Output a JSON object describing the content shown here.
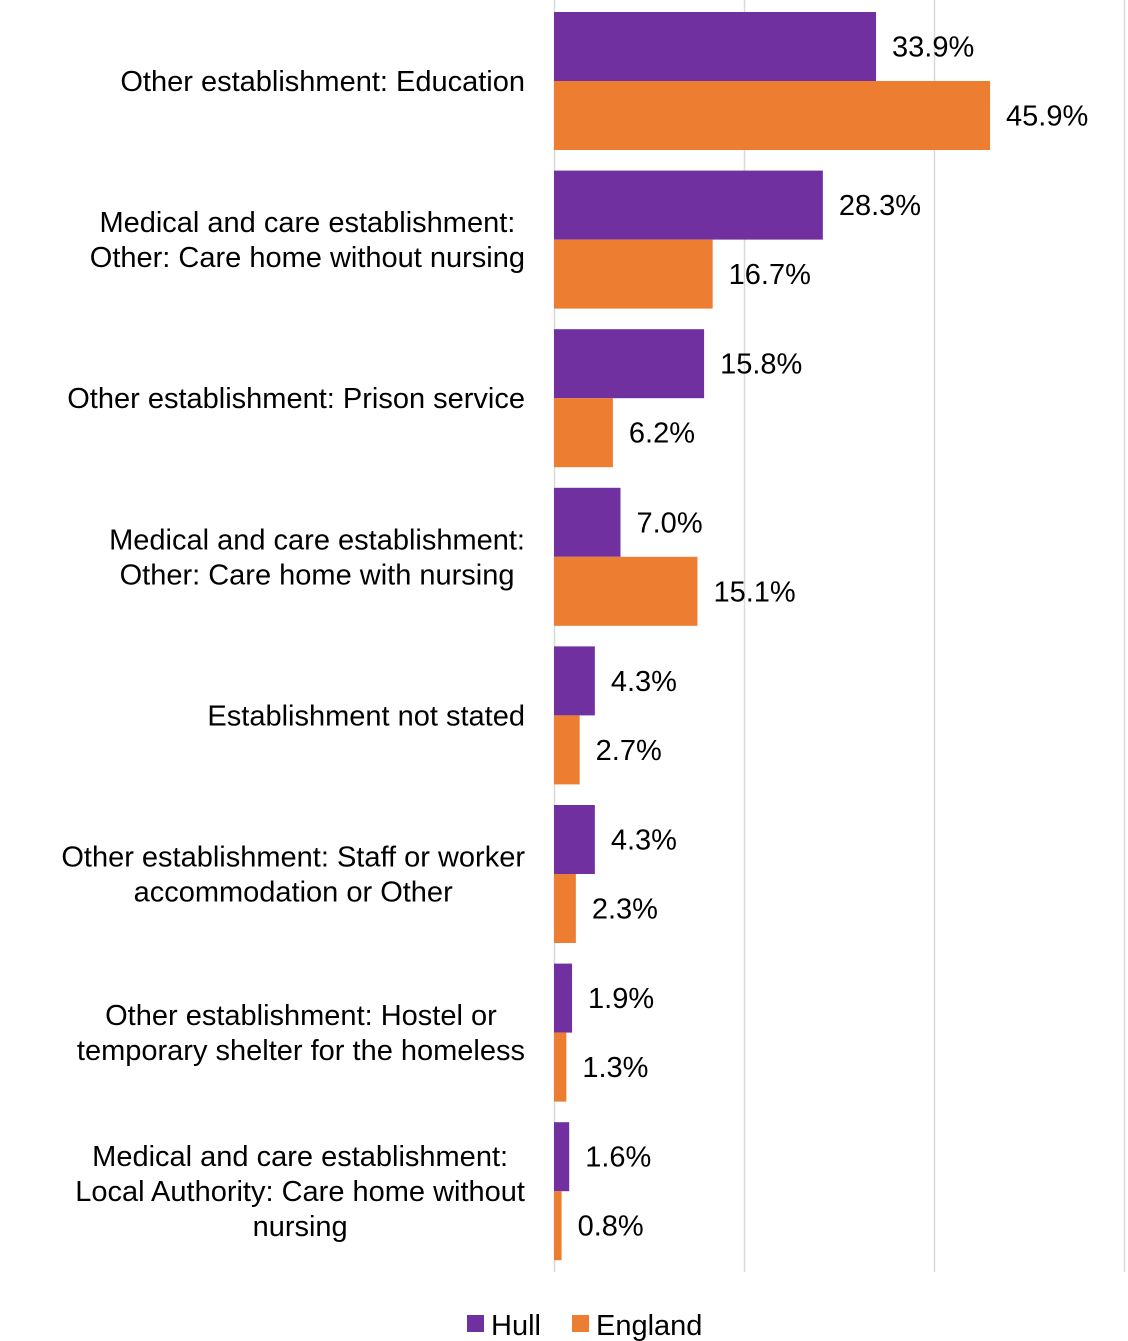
{
  "chart_data": {
    "type": "bar",
    "orientation": "horizontal",
    "categories": [
      [
        "Other establishment: Education"
      ],
      [
        "Medical and care establishment:",
        "Other: Care home without nursing"
      ],
      [
        "Other establishment: Prison service"
      ],
      [
        "Medical and care establishment:",
        "Other: Care home with nursing"
      ],
      [
        "Establishment not stated"
      ],
      [
        "Other establishment: Staff or worker",
        "accommodation or Other"
      ],
      [
        "Other establishment: Hostel or",
        "temporary shelter for the homeless"
      ],
      [
        "Medical and care establishment:",
        "Local Authority: Care home without",
        "nursing"
      ]
    ],
    "series": [
      {
        "name": "Hull",
        "color": "#7030a0",
        "values": [
          33.9,
          28.3,
          15.8,
          7.0,
          4.3,
          4.3,
          1.9,
          1.6
        ],
        "labels": [
          "33.9%",
          "28.3%",
          "15.8%",
          "7.0%",
          "4.3%",
          "4.3%",
          "1.9%",
          "1.6%"
        ]
      },
      {
        "name": "England",
        "color": "#ed7d31",
        "values": [
          45.9,
          16.7,
          6.2,
          15.1,
          2.7,
          2.3,
          1.3,
          0.8
        ],
        "labels": [
          "45.9%",
          "16.7%",
          "6.2%",
          "15.1%",
          "2.7%",
          "2.3%",
          "1.3%",
          "0.8%"
        ]
      }
    ],
    "xlim": [
      0,
      60
    ],
    "x_gridlines": [
      0,
      20,
      40,
      60
    ],
    "grid": true,
    "legend_position": "bottom",
    "gridline_color": "#d9d9d9"
  }
}
